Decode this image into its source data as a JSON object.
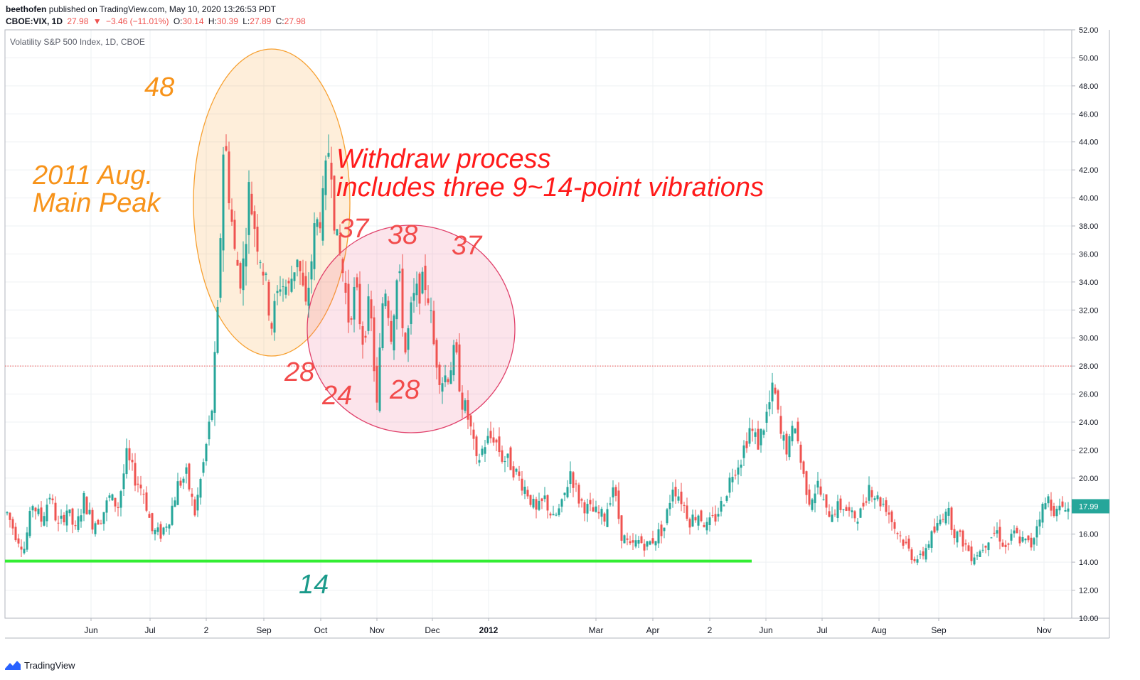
{
  "header": {
    "author": "beethofen",
    "published": "published on TradingView.com, May 10, 2020 13:26:53 PDT",
    "symbol": "CBOE:VIX, 1D",
    "last": "27.98",
    "change": "−3.46 (−11.01%)",
    "o_label": "O:",
    "o": "30.14",
    "h_label": "H:",
    "h": "30.39",
    "l_label": "L:",
    "l": "27.89",
    "c_label": "C:",
    "c": "27.98"
  },
  "chart_title": "Volatility S&P 500 Index, 1D, CBOE",
  "price_badge": "17.99",
  "footer_brand": "TradingView",
  "colors": {
    "up": "#26a69a",
    "down": "#ef5350",
    "orange": "#f7931a",
    "support": "#33ee33",
    "teal": "#1a9a8a"
  },
  "annotations": {
    "peak48": "48",
    "main_peak_1": "2011 Aug.",
    "main_peak_2": "Main Peak",
    "withdraw_1": "Withdraw process",
    "withdraw_2": "includes three 9~14-point vibrations",
    "n37a": "37",
    "n38": "38",
    "n37b": "37",
    "n28a": "28",
    "n24": "24",
    "n28b": "28",
    "support14": "14"
  },
  "chart_data": {
    "type": "candlestick",
    "title": "Volatility S&P 500 Index, 1D, CBOE",
    "ylim": [
      10,
      52
    ],
    "y_ticks": [
      "52.00",
      "50.00",
      "48.00",
      "46.00",
      "44.00",
      "42.00",
      "40.00",
      "38.00",
      "36.00",
      "34.00",
      "32.00",
      "30.00",
      "28.00",
      "26.00",
      "24.00",
      "22.00",
      "20.00",
      "18.00",
      "16.00",
      "14.00",
      "12.00",
      "10.00"
    ],
    "x_ticks": [
      "Jun",
      "Jul",
      "2",
      "Sep",
      "Oct",
      "Nov",
      "Dec",
      "2012",
      "Mar",
      "Apr",
      "2",
      "Jun",
      "Jul",
      "Aug",
      "Sep",
      "Nov"
    ],
    "reference_line": 28.0,
    "support_level": 14.0,
    "key_points": [
      {
        "label": "2011 Aug. Main Peak",
        "value": 48
      },
      {
        "label": "peak",
        "value": 37
      },
      {
        "label": "peak",
        "value": 38
      },
      {
        "label": "peak",
        "value": 37
      },
      {
        "label": "trough",
        "value": 28
      },
      {
        "label": "trough",
        "value": 24
      },
      {
        "label": "trough",
        "value": 28
      },
      {
        "label": "support",
        "value": 14
      }
    ],
    "close_path": [
      [
        0,
        17.5
      ],
      [
        12,
        16.0
      ],
      [
        24,
        15.0
      ],
      [
        36,
        18.2
      ],
      [
        48,
        17.0
      ],
      [
        60,
        18.8
      ],
      [
        72,
        16.5
      ],
      [
        84,
        17.8
      ],
      [
        96,
        16.2
      ],
      [
        108,
        18.5
      ],
      [
        120,
        16.8
      ],
      [
        132,
        17.2
      ],
      [
        144,
        18.6
      ],
      [
        156,
        18.0
      ],
      [
        168,
        21.5
      ],
      [
        180,
        20.0
      ],
      [
        192,
        19.0
      ],
      [
        204,
        16.2
      ],
      [
        216,
        16.0
      ],
      [
        228,
        17.2
      ],
      [
        240,
        19.5
      ],
      [
        252,
        20.2
      ],
      [
        264,
        17.5
      ],
      [
        276,
        21.0
      ],
      [
        288,
        25.0
      ],
      [
        296,
        31.5
      ],
      [
        305,
        45.0
      ],
      [
        312,
        40.5
      ],
      [
        320,
        36.0
      ],
      [
        330,
        34.0
      ],
      [
        340,
        40.5
      ],
      [
        350,
        37.5
      ],
      [
        360,
        35.0
      ],
      [
        372,
        31.0
      ],
      [
        384,
        34.0
      ],
      [
        396,
        33.5
      ],
      [
        408,
        36.0
      ],
      [
        420,
        32.0
      ],
      [
        432,
        37.5
      ],
      [
        444,
        39.5
      ],
      [
        454,
        44.5
      ],
      [
        462,
        37.0
      ],
      [
        470,
        35.5
      ],
      [
        480,
        31.5
      ],
      [
        490,
        33.5
      ],
      [
        500,
        30.0
      ],
      [
        510,
        32.5
      ],
      [
        520,
        25.0
      ],
      [
        530,
        34.5
      ],
      [
        540,
        30.5
      ],
      [
        550,
        35.0
      ],
      [
        560,
        29.0
      ],
      [
        570,
        32.5
      ],
      [
        580,
        33.5
      ],
      [
        590,
        34.0
      ],
      [
        600,
        29.5
      ],
      [
        610,
        27.0
      ],
      [
        620,
        27.5
      ],
      [
        630,
        29.0
      ],
      [
        640,
        25.5
      ],
      [
        650,
        24.0
      ],
      [
        660,
        21.0
      ],
      [
        672,
        22.5
      ],
      [
        684,
        23.0
      ],
      [
        696,
        21.5
      ],
      [
        708,
        21.0
      ],
      [
        720,
        20.0
      ],
      [
        732,
        19.0
      ],
      [
        744,
        17.5
      ],
      [
        756,
        18.5
      ],
      [
        768,
        17.0
      ],
      [
        780,
        18.0
      ],
      [
        792,
        20.5
      ],
      [
        804,
        18.5
      ],
      [
        816,
        17.8
      ],
      [
        828,
        17.5
      ],
      [
        840,
        17.2
      ],
      [
        852,
        19.5
      ],
      [
        864,
        16.0
      ],
      [
        876,
        15.0
      ],
      [
        888,
        15.5
      ],
      [
        900,
        15.2
      ],
      [
        912,
        15.8
      ],
      [
        924,
        16.5
      ],
      [
        936,
        19.5
      ],
      [
        948,
        18.5
      ],
      [
        960,
        17.0
      ],
      [
        972,
        17.5
      ],
      [
        984,
        16.5
      ],
      [
        996,
        17.2
      ],
      [
        1008,
        18.5
      ],
      [
        1020,
        20.5
      ],
      [
        1032,
        21.5
      ],
      [
        1044,
        23.5
      ],
      [
        1056,
        22.5
      ],
      [
        1068,
        24.5
      ],
      [
        1078,
        26.5
      ],
      [
        1088,
        23.0
      ],
      [
        1098,
        22.0
      ],
      [
        1108,
        24.0
      ],
      [
        1118,
        20.5
      ],
      [
        1128,
        18.5
      ],
      [
        1140,
        19.5
      ],
      [
        1152,
        17.5
      ],
      [
        1164,
        17.8
      ],
      [
        1176,
        18.0
      ],
      [
        1188,
        17.2
      ],
      [
        1200,
        17.5
      ],
      [
        1212,
        19.5
      ],
      [
        1224,
        18.5
      ],
      [
        1236,
        18.0
      ],
      [
        1248,
        16.5
      ],
      [
        1260,
        15.5
      ],
      [
        1272,
        14.5
      ],
      [
        1284,
        14.2
      ],
      [
        1296,
        15.5
      ],
      [
        1308,
        16.5
      ],
      [
        1320,
        18.0
      ],
      [
        1332,
        16.2
      ],
      [
        1344,
        15.5
      ],
      [
        1356,
        14.5
      ],
      [
        1368,
        14.8
      ],
      [
        1380,
        15.8
      ],
      [
        1392,
        16.2
      ],
      [
        1404,
        15.0
      ],
      [
        1416,
        16.0
      ],
      [
        1428,
        15.5
      ],
      [
        1440,
        15.2
      ],
      [
        1452,
        17.5
      ],
      [
        1464,
        18.5
      ],
      [
        1476,
        17.5
      ],
      [
        1488,
        18.2
      ],
      [
        1500,
        17.0
      ],
      [
        1506,
        17.99
      ]
    ]
  }
}
